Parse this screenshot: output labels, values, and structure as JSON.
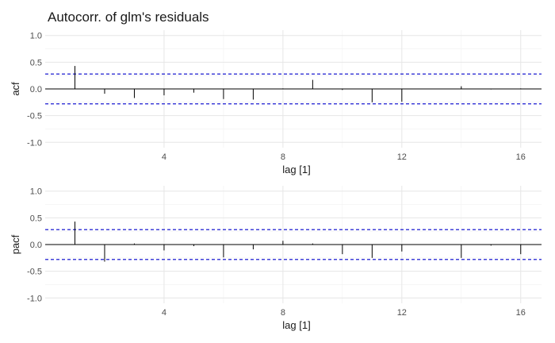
{
  "title": "Autocorr. of glm's residuals",
  "chart_data": [
    {
      "type": "bar",
      "ylabel": "acf",
      "xlabel": "lag [1]",
      "ylim": [
        -1.1,
        1.1
      ],
      "xlim": [
        0,
        16.7
      ],
      "yticks": [
        1.0,
        0.5,
        0.0,
        -0.5,
        -1.0
      ],
      "ytick_labels": [
        "1.0",
        "0.5",
        "0.0",
        "-0.5",
        "-1.0"
      ],
      "xticks": [
        4,
        8,
        12,
        16
      ],
      "xtick_labels": [
        "4",
        "8",
        "12",
        "16"
      ],
      "conf_band": 0.28,
      "grid": true,
      "lags": [
        1,
        2,
        3,
        4,
        5,
        6,
        7,
        8,
        9,
        10,
        11,
        12,
        13,
        14,
        15,
        16
      ],
      "values": [
        0.43,
        -0.09,
        -0.17,
        -0.12,
        -0.07,
        -0.19,
        -0.2,
        0.01,
        0.17,
        -0.02,
        -0.25,
        -0.24,
        0.0,
        0.05,
        -0.01,
        0.01
      ]
    },
    {
      "type": "bar",
      "ylabel": "pacf",
      "xlabel": "lag [1]",
      "ylim": [
        -1.1,
        1.1
      ],
      "xlim": [
        0,
        16.7
      ],
      "yticks": [
        1.0,
        0.5,
        0.0,
        -0.5,
        -1.0
      ],
      "ytick_labels": [
        "1.0",
        "0.5",
        "0.0",
        "-0.5",
        "-1.0"
      ],
      "xticks": [
        4,
        8,
        12,
        16
      ],
      "xtick_labels": [
        "4",
        "8",
        "12",
        "16"
      ],
      "conf_band": 0.28,
      "grid": true,
      "lags": [
        1,
        2,
        3,
        4,
        5,
        6,
        7,
        8,
        9,
        10,
        11,
        12,
        13,
        14,
        15,
        16
      ],
      "values": [
        0.43,
        -0.32,
        0.02,
        -0.11,
        -0.03,
        -0.24,
        -0.09,
        0.07,
        0.02,
        -0.18,
        -0.25,
        -0.13,
        0.0,
        -0.25,
        -0.02,
        -0.18
      ]
    }
  ]
}
